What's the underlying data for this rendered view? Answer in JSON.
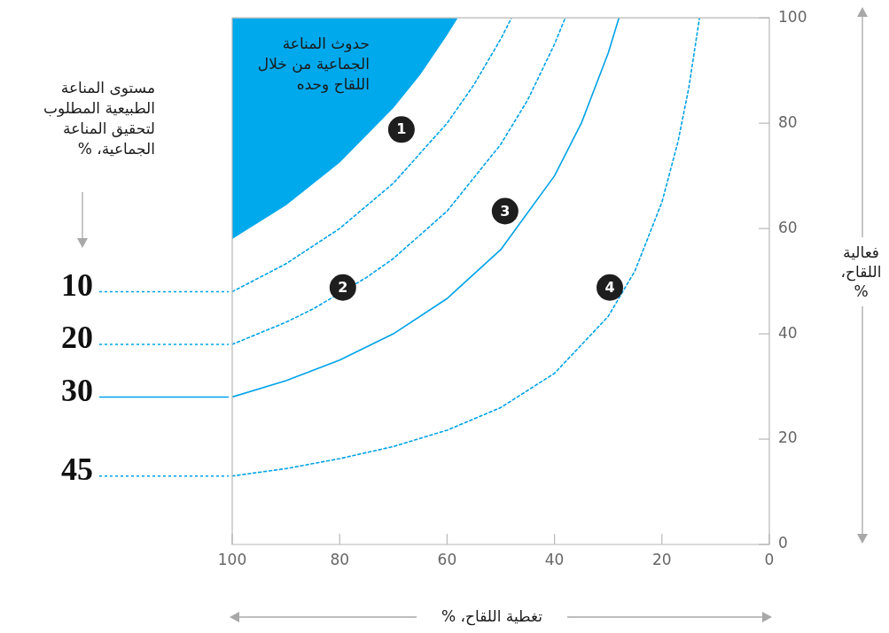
{
  "chart_data": {
    "type": "line",
    "xlabel": "تغطية اللقاح، %",
    "ylabel": "فعالية اللقاح، %",
    "legend_title": "مستوى المناعة الطبيعية المطلوب لتحقيق المناعة الجماعية، %",
    "xlim": [
      100,
      0
    ],
    "xticks": [
      100,
      80,
      60,
      40,
      20,
      0
    ],
    "ylim": [
      0,
      100
    ],
    "yticks": [
      0,
      20,
      40,
      60,
      80,
      100
    ],
    "grid": false,
    "legend": "left",
    "series": [
      {
        "type": "area",
        "name": "حدوث المناعة الجماعية من خلال اللقاح وحده",
        "color": "#00a8ec",
        "x": [
          100,
          100,
          90,
          80,
          70,
          65,
          60,
          58
        ],
        "values": [
          100,
          58,
          64.4,
          72.5,
          82.9,
          89.2,
          96.7,
          100
        ]
      },
      {
        "name": "10",
        "color": "#00a2e8",
        "line_style": "dotted",
        "x": [
          100,
          90,
          80,
          70,
          60,
          55,
          50,
          48
        ],
        "values": [
          48,
          53.3,
          60,
          68.6,
          80,
          87.3,
          96,
          100
        ]
      },
      {
        "name": "20",
        "color": "#00a2e8",
        "line_style": "dotted",
        "x": [
          100,
          90,
          85,
          75,
          70,
          60,
          50,
          45,
          40,
          38
        ],
        "values": [
          38,
          42.2,
          44.7,
          50.7,
          54.3,
          63.3,
          76,
          84.4,
          95,
          100
        ]
      },
      {
        "name": "30",
        "color": "#00a2e8",
        "line_style": "solid",
        "x": [
          100,
          90,
          80,
          70,
          60,
          50,
          40,
          35,
          30,
          28
        ],
        "values": [
          28,
          31.1,
          35,
          40,
          46.7,
          56,
          70,
          80,
          93.3,
          100
        ]
      },
      {
        "name": "45",
        "color": "#00a2e8",
        "line_style": "dotted",
        "x": [
          100,
          90,
          80,
          70,
          60,
          50,
          40,
          30,
          25,
          20,
          17,
          15,
          13
        ],
        "values": [
          13,
          14.4,
          16.3,
          18.6,
          21.7,
          26,
          32.5,
          43.3,
          52,
          65,
          76.5,
          86.7,
          100
        ]
      }
    ],
    "annotations": [
      {
        "text": "1",
        "x": 68.5,
        "y": 78.8
      },
      {
        "text": "2",
        "x": 79.4,
        "y": 48.8
      },
      {
        "text": "3",
        "x": 49.2,
        "y": 63.3
      },
      {
        "text": "4",
        "x": 29.7,
        "y": 48.8
      }
    ]
  }
}
